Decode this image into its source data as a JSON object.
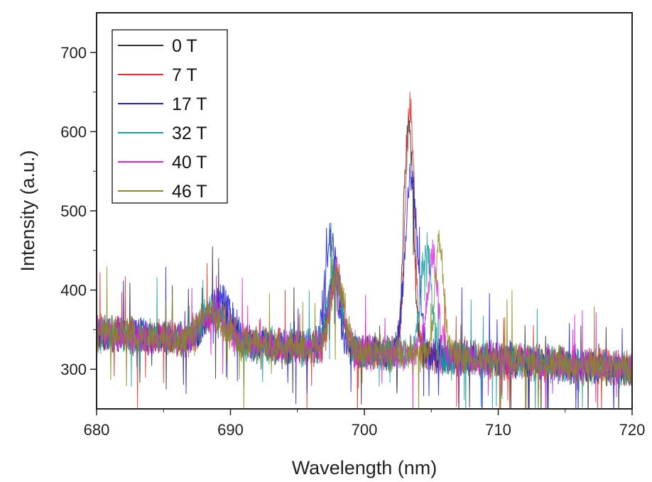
{
  "chart_data": {
    "type": "line",
    "xlabel": "Wavelength (nm)",
    "ylabel": "Intensity (a.u.)",
    "xlim": [
      680,
      720
    ],
    "ylim": [
      250,
      750
    ],
    "x_ticks": [
      680,
      690,
      700,
      710,
      720
    ],
    "y_ticks": [
      300,
      400,
      500,
      600,
      700
    ],
    "grid": false,
    "legend_position": "top-left",
    "series": [
      {
        "name": "0 T",
        "color": "#2f2f2f",
        "peaks": [
          {
            "center": 689.0,
            "height": 40,
            "width": 0.9
          },
          {
            "center": 697.8,
            "height": 100,
            "width": 0.45
          },
          {
            "center": 703.3,
            "height": 300,
            "width": 0.35
          }
        ]
      },
      {
        "name": "7 T",
        "color": "#e0302a",
        "peaks": [
          {
            "center": 689.0,
            "height": 38,
            "width": 0.9
          },
          {
            "center": 697.9,
            "height": 95,
            "width": 0.45
          },
          {
            "center": 703.4,
            "height": 310,
            "width": 0.35
          }
        ]
      },
      {
        "name": "17 T",
        "color": "#2020d8",
        "peaks": [
          {
            "center": 689.2,
            "height": 55,
            "width": 0.9
          },
          {
            "center": 697.5,
            "height": 140,
            "width": 0.45
          },
          {
            "center": 703.5,
            "height": 230,
            "width": 0.45
          }
        ]
      },
      {
        "name": "32 T",
        "color": "#1aa0a0",
        "peaks": [
          {
            "center": 688.8,
            "height": 40,
            "width": 0.9
          },
          {
            "center": 697.8,
            "height": 100,
            "width": 0.5
          },
          {
            "center": 704.6,
            "height": 140,
            "width": 0.4
          }
        ]
      },
      {
        "name": "40 T",
        "color": "#e020e0",
        "peaks": [
          {
            "center": 688.7,
            "height": 35,
            "width": 0.9
          },
          {
            "center": 697.9,
            "height": 95,
            "width": 0.5
          },
          {
            "center": 705.1,
            "height": 130,
            "width": 0.4
          }
        ]
      },
      {
        "name": "46 T",
        "color": "#8a8a20",
        "peaks": [
          {
            "center": 688.5,
            "height": 35,
            "width": 0.9
          },
          {
            "center": 698.0,
            "height": 90,
            "width": 0.5
          },
          {
            "center": 705.6,
            "height": 140,
            "width": 0.35
          }
        ]
      }
    ],
    "baseline": {
      "at_680": 345,
      "at_720": 300
    }
  }
}
